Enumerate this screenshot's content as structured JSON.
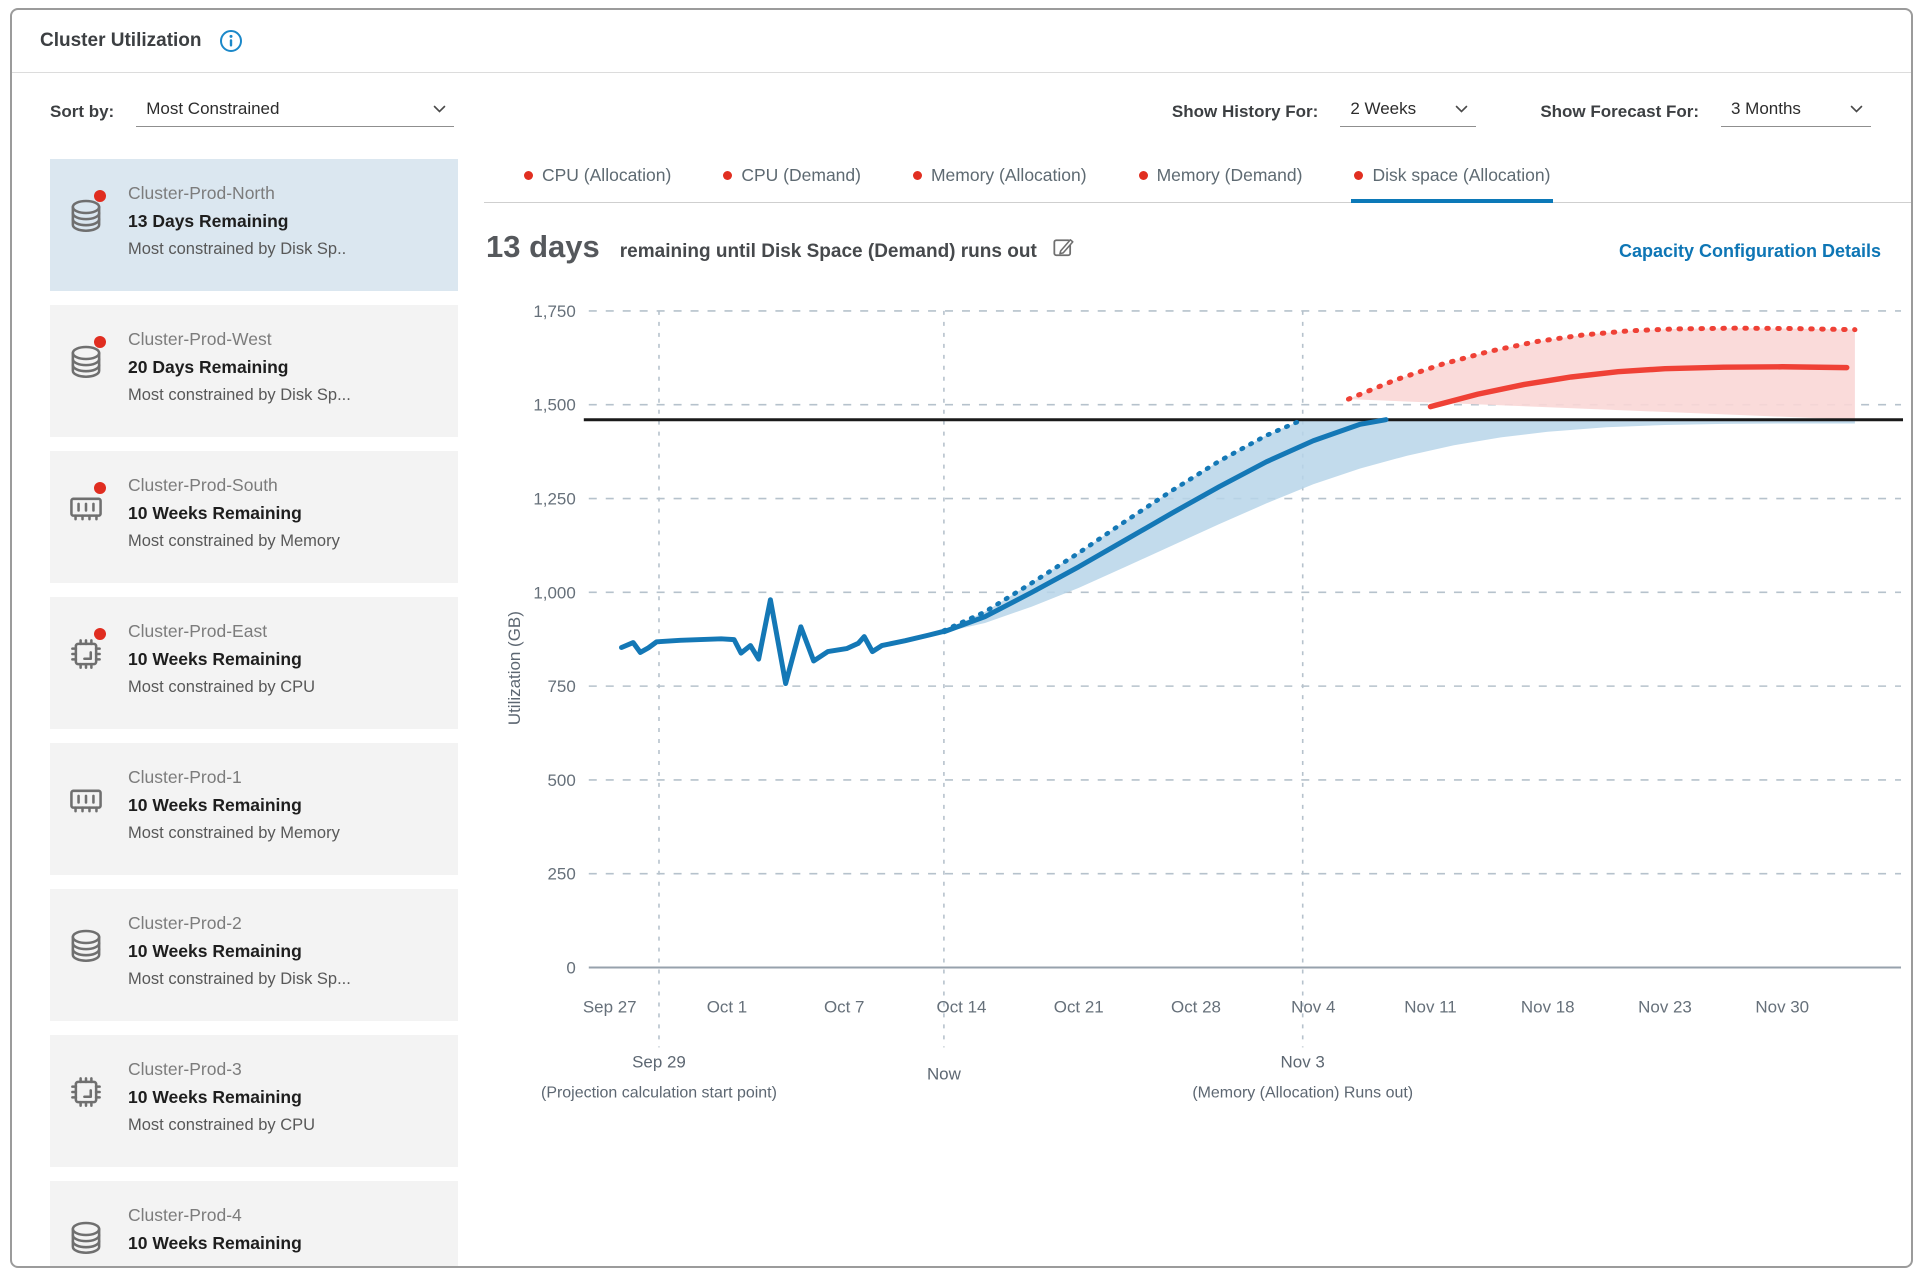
{
  "header": {
    "title": "Cluster Utilization"
  },
  "controls": {
    "sort_label": "Sort by:",
    "sort_value": "Most Constrained",
    "history_label": "Show History For:",
    "history_value": "2 Weeks",
    "forecast_label": "Show Forecast For:",
    "forecast_value": "3 Months"
  },
  "sidebar": {
    "items": [
      {
        "name": "Cluster-Prod-North",
        "remaining": "13 Days Remaining",
        "constraint": "Most constrained by Disk Sp..",
        "icon": "disk",
        "alert": true,
        "selected": true
      },
      {
        "name": "Cluster-Prod-West",
        "remaining": "20 Days Remaining",
        "constraint": "Most constrained by Disk Sp...",
        "icon": "disk",
        "alert": true,
        "selected": false
      },
      {
        "name": "Cluster-Prod-South",
        "remaining": "10 Weeks Remaining",
        "constraint": "Most constrained by Memory",
        "icon": "memory",
        "alert": true,
        "selected": false
      },
      {
        "name": "Cluster-Prod-East",
        "remaining": "10 Weeks Remaining",
        "constraint": "Most constrained by CPU",
        "icon": "cpu",
        "alert": true,
        "selected": false
      },
      {
        "name": "Cluster-Prod-1",
        "remaining": "10 Weeks Remaining",
        "constraint": "Most constrained by Memory",
        "icon": "memory",
        "alert": false,
        "selected": false
      },
      {
        "name": "Cluster-Prod-2",
        "remaining": "10 Weeks Remaining",
        "constraint": "Most constrained by Disk Sp...",
        "icon": "disk",
        "alert": false,
        "selected": false
      },
      {
        "name": "Cluster-Prod-3",
        "remaining": "10 Weeks Remaining",
        "constraint": "Most constrained by CPU",
        "icon": "cpu",
        "alert": false,
        "selected": false
      },
      {
        "name": "Cluster-Prod-4",
        "remaining": "10 Weeks Remaining",
        "constraint": "",
        "icon": "disk",
        "alert": false,
        "selected": false
      }
    ]
  },
  "tabs": [
    {
      "label": "CPU (Allocation)",
      "selected": false,
      "partial": false
    },
    {
      "label": "CPU (Demand)",
      "selected": false,
      "partial": false
    },
    {
      "label": "Memory (Allocation)",
      "selected": false,
      "partial": false
    },
    {
      "label": "Memory (Demand)",
      "selected": false,
      "partial": false
    },
    {
      "label": "Disk space (Allocation)",
      "selected": true,
      "partial": false
    },
    {
      "label": "",
      "selected": false,
      "partial": true
    }
  ],
  "capacity_panel": {
    "days": "13 days",
    "subtitle": "remaining until Disk Space (Demand) runs out",
    "link": "Capacity Configuration Details"
  },
  "colors": {
    "history_blue": "#1478b6",
    "forecast_red": "#ef4136",
    "band_blue": "#b7d5e9",
    "band_pink": "#f9d7d6",
    "capacity_black": "#1a1a1a",
    "tab_dot_red": "#e12f21",
    "accent_blue": "#0e76b5",
    "selected_bg": "#dbe7f0"
  },
  "chart_data": {
    "type": "line",
    "title": "13 days remaining until Disk Space (Demand) runs out",
    "ylabel": "Utilization (GB)",
    "ylim": [
      0,
      1750
    ],
    "yticks": [
      0,
      250,
      500,
      750,
      1000,
      1250,
      1500,
      1750
    ],
    "xticklabels": [
      "Sep 27",
      "Oct 1",
      "Oct 7",
      "Oct 14",
      "Oct 21",
      "Oct 28",
      "Nov 4",
      "Nov 11",
      "Nov 18",
      "Nov 23",
      "Nov 30"
    ],
    "x_units_note": "x values are in tick-interval units: 0 = Sep 27, 3 = Oct 14 (Now), 10 = Nov 30",
    "capacity_gb": 1460,
    "grid": true,
    "history": [
      [
        0.1,
        853
      ],
      [
        0.2,
        866
      ],
      [
        0.26,
        840
      ],
      [
        0.33,
        852
      ],
      [
        0.4,
        868
      ],
      [
        0.6,
        872
      ],
      [
        0.95,
        876
      ],
      [
        1.06,
        874
      ],
      [
        1.12,
        838
      ],
      [
        1.2,
        858
      ],
      [
        1.27,
        822
      ],
      [
        1.37,
        980
      ],
      [
        1.5,
        757
      ],
      [
        1.63,
        908
      ],
      [
        1.74,
        817
      ],
      [
        1.86,
        842
      ],
      [
        2.02,
        850
      ],
      [
        2.12,
        864
      ],
      [
        2.17,
        882
      ],
      [
        2.24,
        842
      ],
      [
        2.32,
        858
      ],
      [
        2.52,
        871
      ],
      [
        2.72,
        886
      ],
      [
        2.85,
        896
      ]
    ],
    "forecast_upper": [
      [
        2.85,
        898
      ],
      [
        3.2,
        948
      ],
      [
        3.6,
        1025
      ],
      [
        4.0,
        1105
      ],
      [
        4.4,
        1190
      ],
      [
        4.8,
        1272
      ],
      [
        5.2,
        1350
      ],
      [
        5.6,
        1418
      ],
      [
        5.91,
        1460
      ],
      [
        6.3,
        1515
      ],
      [
        6.7,
        1566
      ],
      [
        7.1,
        1608
      ],
      [
        7.5,
        1642
      ],
      [
        7.9,
        1668
      ],
      [
        8.3,
        1686
      ],
      [
        8.7,
        1697
      ],
      [
        9.1,
        1702
      ],
      [
        9.6,
        1704
      ],
      [
        10.1,
        1703
      ],
      [
        10.62,
        1700
      ]
    ],
    "forecast_mean": [
      [
        2.85,
        895
      ],
      [
        3.2,
        935
      ],
      [
        3.6,
        1000
      ],
      [
        4.0,
        1068
      ],
      [
        4.4,
        1140
      ],
      [
        4.8,
        1212
      ],
      [
        5.2,
        1282
      ],
      [
        5.6,
        1348
      ],
      [
        6.0,
        1404
      ],
      [
        6.4,
        1448
      ],
      [
        6.62,
        1460
      ],
      [
        7.0,
        1495
      ],
      [
        7.4,
        1528
      ],
      [
        7.8,
        1554
      ],
      [
        8.2,
        1574
      ],
      [
        8.6,
        1588
      ],
      [
        9.0,
        1596
      ],
      [
        9.5,
        1600
      ],
      [
        10.0,
        1601
      ],
      [
        10.55,
        1599
      ]
    ],
    "forecast_lower": [
      [
        2.85,
        893
      ],
      [
        3.2,
        918
      ],
      [
        3.6,
        962
      ],
      [
        4.0,
        1012
      ],
      [
        4.4,
        1068
      ],
      [
        4.8,
        1125
      ],
      [
        5.2,
        1182
      ],
      [
        5.6,
        1237
      ],
      [
        6.0,
        1288
      ],
      [
        6.4,
        1330
      ],
      [
        6.8,
        1364
      ],
      [
        7.2,
        1392
      ],
      [
        7.6,
        1413
      ],
      [
        8.0,
        1428
      ],
      [
        8.5,
        1440
      ],
      [
        9.0,
        1446
      ],
      [
        9.5,
        1449
      ],
      [
        10.0,
        1450
      ],
      [
        10.62,
        1450
      ]
    ],
    "annotations": [
      {
        "t": 0.42,
        "label": "Sep 29",
        "sublabel": "(Projection calculation start point)"
      },
      {
        "t": 2.85,
        "label": "Now",
        "sublabel": ""
      },
      {
        "t": 5.91,
        "label": "Nov 3",
        "sublabel": "(Memory (Allocation) Runs out)"
      }
    ]
  }
}
